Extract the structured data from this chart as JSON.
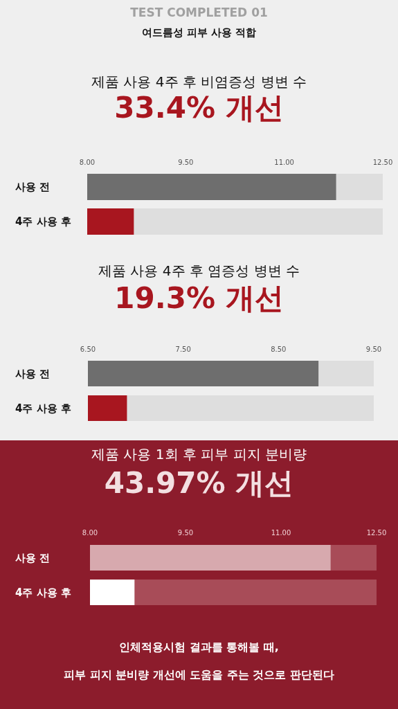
{
  "chart_data": [
    {
      "type": "bar",
      "orientation": "horizontal",
      "title": "제품 사용 4주 후 비염증성 병변 수",
      "subtitle": "33.4% 개선",
      "annotations": [
        "TEST COMPLETED 01",
        "여드름성 피부 사용 적합"
      ],
      "categories": [
        "사용 전",
        "4주 사용 후"
      ],
      "values": [
        11.79,
        8.71
      ],
      "colors": [
        "#6e6e6e",
        "#a8161f"
      ],
      "xlim": [
        8,
        12.5
      ],
      "xticks": [
        {
          "value": 8,
          "label": "8.00"
        },
        {
          "value": 9.5,
          "label": "9.50"
        },
        {
          "value": 11,
          "label": "11.00"
        },
        {
          "value": 12.5,
          "label": "12.50"
        }
      ]
    },
    {
      "type": "bar",
      "orientation": "horizontal",
      "title": "제품 사용 4주 후 염증성 병변 수",
      "subtitle": "19.3% 개선",
      "categories": [
        "사용 전",
        "4주 사용 후"
      ],
      "values": [
        8.92,
        6.91
      ],
      "colors": [
        "#6e6e6e",
        "#a8161f"
      ],
      "xlim": [
        6.5,
        9.5
      ],
      "xticks": [
        {
          "value": 6.5,
          "label": "6.50"
        },
        {
          "value": 7.5,
          "label": "7.50"
        },
        {
          "value": 8.5,
          "label": "8.50"
        },
        {
          "value": 9.5,
          "label": "9.50"
        }
      ]
    },
    {
      "type": "bar",
      "orientation": "horizontal",
      "title": "제품 사용 1회 후 피부 피지 분비량",
      "subtitle": "43.97% 개선",
      "annotations": [
        "인체적용시험 결과를 통해볼 때,",
        "피부 피지 분비량 개선에 도움을 주는 것으로 판단된다"
      ],
      "categories": [
        "사용 전",
        "4주 사용 후"
      ],
      "values": [
        11.78,
        8.7
      ],
      "colors": [
        "#d7a9ae",
        "#ffffff"
      ],
      "xlim": [
        8,
        12.5
      ],
      "xticks": [
        {
          "value": 8,
          "label": "8.00"
        },
        {
          "value": 9.5,
          "label": "9.50"
        },
        {
          "value": 11,
          "label": "11.00"
        },
        {
          "value": 12.5,
          "label": "12.50"
        }
      ]
    }
  ]
}
